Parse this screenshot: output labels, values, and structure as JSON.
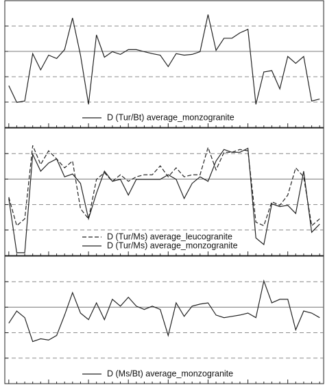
{
  "chart_data": [
    {
      "type": "line",
      "categories": [
        null,
        null,
        null,
        null,
        null,
        null,
        null,
        null,
        null,
        null,
        null,
        null,
        null,
        null,
        null,
        null,
        null,
        null,
        null,
        null,
        null,
        null,
        null,
        null,
        null,
        null,
        null,
        null,
        null,
        null,
        null,
        null,
        null,
        null,
        null,
        null,
        null,
        null,
        null,
        null
      ],
      "ylim": [
        0,
        5
      ],
      "yticks": [
        1,
        2,
        3,
        4
      ],
      "grid": true,
      "reference": 3,
      "series": [
        {
          "name": "D (Tur/Bt) average_monzogranite",
          "color": "#222222",
          "dash": false,
          "values": [
            1.65,
            0.99,
            1.04,
            2.91,
            2.27,
            2.85,
            2.72,
            3.07,
            4.32,
            2.85,
            0.91,
            3.65,
            2.77,
            2.99,
            2.88,
            3.07,
            3.07,
            2.99,
            2.91,
            2.85,
            2.4,
            2.91,
            2.85,
            2.88,
            2.99,
            4.45,
            3.04,
            3.52,
            3.52,
            3.73,
            3.87,
            0.91,
            2.19,
            2.24,
            1.52,
            2.8,
            2.53,
            2.8,
            1.04,
            1.12
          ]
        }
      ]
    },
    {
      "type": "line",
      "categories": [
        null,
        null,
        null,
        null,
        null,
        null,
        null,
        null,
        null,
        null,
        null,
        null,
        null,
        null,
        null,
        null,
        null,
        null,
        null,
        null,
        null,
        null,
        null,
        null,
        null,
        null,
        null,
        null,
        null,
        null,
        null,
        null,
        null,
        null,
        null,
        null,
        null,
        null,
        null,
        null
      ],
      "ylim": [
        0,
        5
      ],
      "yticks": [
        1,
        2,
        3,
        4
      ],
      "grid": true,
      "reference": 3,
      "series": [
        {
          "name": "D (Tur/Ms) average_leucogranite",
          "color": "#222222",
          "dash": true,
          "values": [
            2.29,
            1.17,
            1.44,
            4.32,
            3.57,
            4.11,
            3.79,
            3.44,
            3.71,
            1.84,
            1.44,
            2.99,
            3.25,
            2.91,
            3.17,
            2.91,
            3.09,
            3.17,
            3.17,
            3.52,
            3.09,
            3.44,
            3.09,
            3.17,
            3.17,
            4.24,
            3.36,
            4.05,
            4.05,
            4.16,
            4.11,
            1.31,
            1.17,
            2.11,
            1.97,
            2.37,
            3.44,
            3.09,
            1.17,
            1.44
          ]
        },
        {
          "name": "D (Tur/Ms) average_monzogranite",
          "color": "#222222",
          "dash": false,
          "values": [
            2.24,
            0.11,
            0.11,
            3.97,
            3.31,
            3.63,
            3.79,
            3.09,
            3.2,
            2.83,
            1.44,
            2.45,
            3.31,
            2.91,
            2.99,
            2.37,
            2.99,
            2.99,
            2.99,
            2.99,
            3.17,
            2.99,
            2.24,
            2.83,
            3.09,
            2.91,
            3.71,
            4.16,
            4.05,
            4.05,
            4.21,
            0.69,
            0.43,
            2.03,
            1.92,
            1.97,
            1.65,
            3.31,
            0.91,
            1.23
          ]
        }
      ]
    },
    {
      "type": "line",
      "categories": [
        null,
        null,
        null,
        null,
        null,
        null,
        null,
        null,
        null,
        null,
        null,
        null,
        null,
        null,
        null,
        null,
        null,
        null,
        null,
        null,
        null,
        null,
        null,
        null,
        null,
        null,
        null,
        null,
        null,
        null,
        null,
        null,
        null,
        null,
        null,
        null,
        null,
        null,
        null,
        null
      ],
      "ylim": [
        0,
        5
      ],
      "yticks": [
        1,
        2,
        3,
        4
      ],
      "grid": true,
      "reference": 3,
      "series": [
        {
          "name": "D (Ms/Bt) average_monzogranite",
          "color": "#222222",
          "dash": false,
          "values": [
            2.37,
            2.85,
            2.59,
            1.65,
            1.76,
            1.71,
            1.89,
            2.69,
            3.57,
            2.77,
            2.51,
            3.17,
            2.51,
            3.31,
            3.04,
            3.39,
            3.04,
            2.91,
            3.04,
            2.91,
            1.89,
            3.17,
            2.64,
            3.04,
            3.12,
            3.17,
            2.69,
            2.59,
            2.64,
            2.69,
            2.77,
            2.59,
            4.03,
            3.17,
            3.31,
            3.31,
            2.11,
            2.85,
            2.77,
            2.59
          ]
        }
      ]
    }
  ]
}
